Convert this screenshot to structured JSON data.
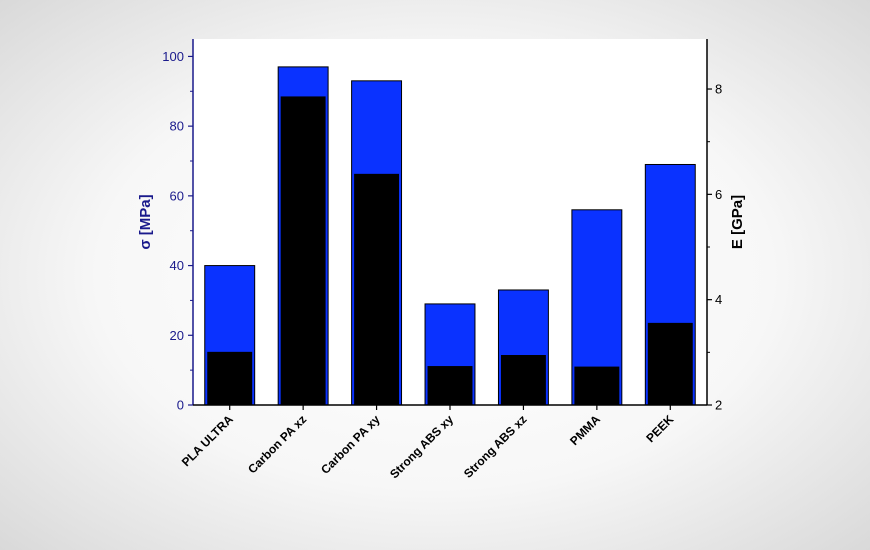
{
  "chart_data": {
    "type": "bar",
    "categories": [
      "PLA ULTRA",
      "Carbon PA xz",
      "Carbon PA xy",
      "Strong ABS xy",
      "Strong ABS xz",
      "PMMA",
      "PEEK"
    ],
    "series": [
      {
        "axis": "left",
        "color": "#0a32ff",
        "values": [
          40,
          97,
          93,
          29,
          33,
          56,
          69
        ]
      },
      {
        "axis": "right",
        "color": "#000000",
        "values": [
          3.0,
          7.85,
          6.38,
          2.73,
          2.94,
          2.72,
          3.55
        ]
      }
    ],
    "ylabel": "σ [MPa]",
    "ylabel_right": "E [GPa]",
    "ylim": [
      0,
      105
    ],
    "ylim_right": [
      2,
      8.95
    ],
    "yticks": [
      0,
      20,
      40,
      60,
      80,
      100
    ],
    "yticks_right": [
      2,
      4,
      6,
      8
    ],
    "grid": false,
    "colors": {
      "left_axis": "#1a1a8c",
      "right_axis": "#000000"
    }
  }
}
